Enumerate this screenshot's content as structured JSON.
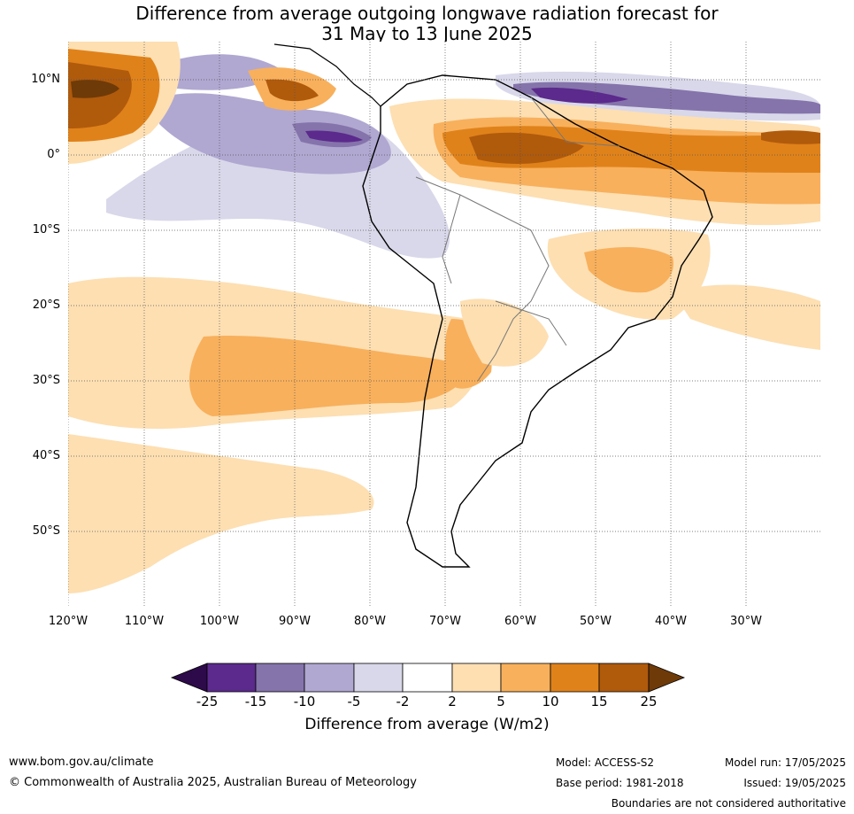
{
  "title": {
    "line1": "Difference from average outgoing longwave radiation forecast for",
    "line2": "31 May to 13 June 2025"
  },
  "map": {
    "region": "South America",
    "lat_labels": [
      "10°N",
      "0°",
      "10°S",
      "20°S",
      "30°S",
      "40°S",
      "50°S"
    ],
    "lon_labels": [
      "120°W",
      "110°W",
      "100°W",
      "90°W",
      "80°W",
      "70°W",
      "60°W",
      "50°W",
      "40°W",
      "30°W"
    ]
  },
  "legend": {
    "ticks": [
      "-25",
      "-15",
      "-10",
      "-5",
      "-2",
      "2",
      "5",
      "10",
      "15",
      "25"
    ],
    "bins": [
      {
        "color": "#2d0a4a"
      },
      {
        "color": "#5b2a8c"
      },
      {
        "color": "#8574ab"
      },
      {
        "color": "#b0a8d1"
      },
      {
        "color": "#d9d8ea"
      },
      {
        "color": "#ffffff"
      },
      {
        "color": "#fddfb2"
      },
      {
        "color": "#f8b05c"
      },
      {
        "color": "#e0821a"
      },
      {
        "color": "#b05a0c"
      },
      {
        "color": "#6e3a08"
      }
    ],
    "title": "Difference from average (W/m2)"
  },
  "footer": {
    "website": "www.bom.gov.au/climate",
    "copyright": "© Commonwealth of Australia 2025, Australian Bureau of Meteorology",
    "model": "Model: ACCESS-S2",
    "base_period": "Base period: 1981-2018",
    "model_run": "Model run: 17/05/2025",
    "issued": "Issued: 19/05/2025",
    "disclaimer": "Boundaries are not considered authoritative"
  }
}
